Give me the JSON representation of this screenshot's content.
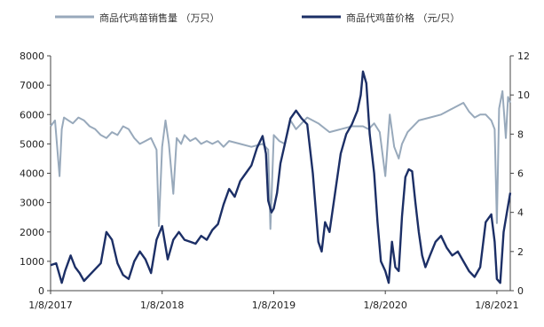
{
  "chart_data": {
    "type": "line",
    "title": "",
    "legend_position": "top",
    "grid": false,
    "x_axis": {
      "tick_labels": [
        "1/8/2017",
        "1/8/2018",
        "1/8/2019",
        "1/8/2020",
        "1/8/2021"
      ],
      "range": [
        2017.0,
        2021.12
      ]
    },
    "y_left": {
      "range": [
        0,
        8000
      ],
      "ticks": [
        0,
        1000,
        2000,
        3000,
        4000,
        5000,
        6000,
        7000,
        8000
      ]
    },
    "y_right": {
      "range": [
        0,
        12
      ],
      "ticks": [
        0,
        2,
        4,
        6,
        8,
        10,
        12
      ]
    },
    "series": [
      {
        "name": "商品代鸡苗销售量 （万只）",
        "axis": "left",
        "color": "#98a9bb",
        "x": [
          2017.0,
          2017.04,
          2017.08,
          2017.1,
          2017.12,
          2017.16,
          2017.2,
          2017.25,
          2017.3,
          2017.35,
          2017.4,
          2017.45,
          2017.5,
          2017.55,
          2017.6,
          2017.65,
          2017.7,
          2017.75,
          2017.8,
          2017.85,
          2017.9,
          2017.95,
          2017.97,
          2018.0,
          2018.03,
          2018.06,
          2018.1,
          2018.13,
          2018.17,
          2018.2,
          2018.25,
          2018.3,
          2018.35,
          2018.4,
          2018.45,
          2018.5,
          2018.55,
          2018.6,
          2018.7,
          2018.8,
          2018.9,
          2018.95,
          2018.97,
          2019.0,
          2019.05,
          2019.1,
          2019.15,
          2019.2,
          2019.3,
          2019.4,
          2019.5,
          2019.6,
          2019.7,
          2019.8,
          2019.85,
          2019.9,
          2019.95,
          2020.0,
          2020.04,
          2020.08,
          2020.12,
          2020.15,
          2020.2,
          2020.3,
          2020.4,
          2020.5,
          2020.6,
          2020.7,
          2020.75,
          2020.8,
          2020.85,
          2020.9,
          2020.95,
          2020.98,
          2021.0,
          2021.02,
          2021.05,
          2021.08,
          2021.1,
          2021.12
        ],
        "values": [
          5600,
          5800,
          3900,
          5500,
          5900,
          5800,
          5700,
          5900,
          5800,
          5600,
          5500,
          5300,
          5200,
          5400,
          5300,
          5600,
          5500,
          5200,
          5000,
          5100,
          5200,
          4800,
          2200,
          4900,
          5800,
          5000,
          3300,
          5200,
          5000,
          5300,
          5100,
          5200,
          5000,
          5100,
          5000,
          5100,
          4900,
          5100,
          5000,
          4900,
          5000,
          4800,
          2100,
          5300,
          5100,
          5000,
          5800,
          5500,
          5900,
          5700,
          5400,
          5500,
          5600,
          5600,
          5500,
          5700,
          5400,
          3900,
          6000,
          4900,
          4500,
          5000,
          5400,
          5800,
          5900,
          6000,
          6200,
          6400,
          6100,
          5900,
          6000,
          6000,
          5800,
          5500,
          2300,
          6200,
          6800,
          5200,
          6600,
          6400
        ]
      },
      {
        "name": "商品代鸡苗价格 （元/只）",
        "axis": "right",
        "color": "#1c2f66",
        "x": [
          2017.0,
          2017.05,
          2017.1,
          2017.13,
          2017.18,
          2017.22,
          2017.26,
          2017.3,
          2017.35,
          2017.4,
          2017.45,
          2017.5,
          2017.55,
          2017.6,
          2017.65,
          2017.7,
          2017.75,
          2017.8,
          2017.85,
          2017.9,
          2017.95,
          2018.0,
          2018.05,
          2018.1,
          2018.15,
          2018.2,
          2018.25,
          2018.3,
          2018.35,
          2018.4,
          2018.45,
          2018.5,
          2018.55,
          2018.6,
          2018.65,
          2018.7,
          2018.75,
          2018.8,
          2018.85,
          2018.9,
          2018.93,
          2018.95,
          2018.98,
          2019.0,
          2019.03,
          2019.06,
          2019.1,
          2019.15,
          2019.2,
          2019.25,
          2019.3,
          2019.35,
          2019.4,
          2019.43,
          2019.46,
          2019.5,
          2019.55,
          2019.6,
          2019.65,
          2019.7,
          2019.75,
          2019.78,
          2019.8,
          2019.83,
          2019.86,
          2019.9,
          2019.93,
          2019.96,
          2020.0,
          2020.03,
          2020.06,
          2020.09,
          2020.12,
          2020.15,
          2020.18,
          2020.21,
          2020.24,
          2020.27,
          2020.3,
          2020.33,
          2020.36,
          2020.4,
          2020.45,
          2020.5,
          2020.55,
          2020.6,
          2020.65,
          2020.7,
          2020.75,
          2020.8,
          2020.85,
          2020.9,
          2020.95,
          2020.98,
          2021.0,
          2021.03,
          2021.06,
          2021.09,
          2021.12
        ],
        "values": [
          1.3,
          1.4,
          0.4,
          1.0,
          1.8,
          1.2,
          0.9,
          0.5,
          0.8,
          1.1,
          1.4,
          3.0,
          2.6,
          1.4,
          0.8,
          0.6,
          1.5,
          2.0,
          1.6,
          0.9,
          2.6,
          3.3,
          1.6,
          2.6,
          3.0,
          2.6,
          2.5,
          2.4,
          2.8,
          2.6,
          3.1,
          3.4,
          4.4,
          5.2,
          4.8,
          5.6,
          6.0,
          6.4,
          7.3,
          7.9,
          7.0,
          4.6,
          4.0,
          4.2,
          5.0,
          6.5,
          7.5,
          8.8,
          9.2,
          8.8,
          8.5,
          6.0,
          2.5,
          2.0,
          3.5,
          3.0,
          5.0,
          7.0,
          8.0,
          8.5,
          9.2,
          10.0,
          11.2,
          10.6,
          8.0,
          6.0,
          3.5,
          1.5,
          1.0,
          0.4,
          2.5,
          1.2,
          1.0,
          3.8,
          5.8,
          6.2,
          6.1,
          4.5,
          3.0,
          1.8,
          1.2,
          1.8,
          2.5,
          2.8,
          2.2,
          1.8,
          2.0,
          1.5,
          1.0,
          0.7,
          1.2,
          3.5,
          3.9,
          2.5,
          0.6,
          0.4,
          3.0,
          4.0,
          5.0
        ]
      }
    ]
  }
}
